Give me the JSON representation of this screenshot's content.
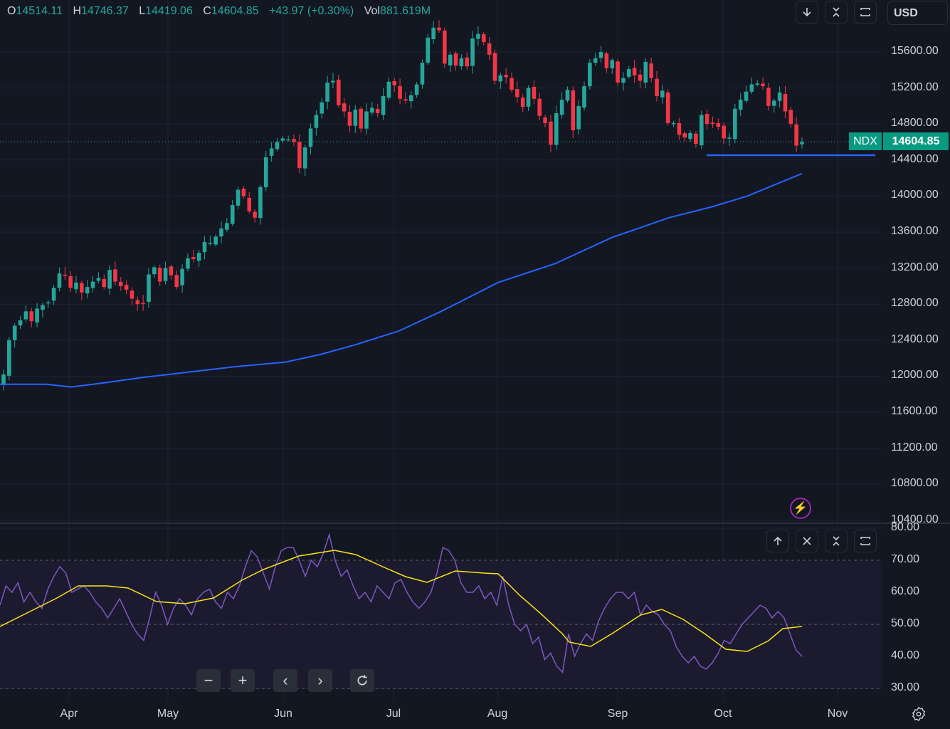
{
  "header": {
    "o_label": "O",
    "o_value": "14514.11",
    "h_label": "H",
    "h_value": "14746.37",
    "l_label": "L",
    "l_value": "14419.06",
    "c_label": "C",
    "c_value": "14604.85",
    "change": "+43.97 (+0.30%)",
    "vol_label": "Vol",
    "vol_value": "881.619M"
  },
  "toolbar": {
    "currency": "USD"
  },
  "price_tag": {
    "symbol": "NDX",
    "value": "14604.85"
  },
  "colors": {
    "up": "#26a69a",
    "down": "#f23645",
    "ma": "#2962ff",
    "rsi": "#7e57c2",
    "rsi_ma": "#f7e418",
    "support": "#2962ff"
  },
  "chart_data": [
    {
      "type": "candlestick",
      "symbol": "NDX",
      "y_ticks": [
        "15600.00",
        "15200.00",
        "14800.00",
        "14400.00",
        "14000.00",
        "13600.00",
        "13200.00",
        "12800.00",
        "12400.00",
        "12000.00",
        "11600.00",
        "11200.00",
        "10800.00",
        "10400.00"
      ],
      "ylim": [
        10400,
        16000
      ],
      "x_labels": [
        "Apr",
        "May",
        "Jun",
        "Jul",
        "Aug",
        "Sep",
        "Oct",
        "Nov"
      ],
      "grid": true,
      "close": [
        12020,
        12400,
        12560,
        12620,
        12720,
        12610,
        12750,
        12790,
        12820,
        12980,
        13140,
        13120,
        12980,
        13040,
        12930,
        12990,
        13050,
        13090,
        12990,
        13180,
        13050,
        13000,
        12960,
        12860,
        12800,
        12810,
        13130,
        13210,
        13050,
        13200,
        13120,
        12990,
        13190,
        13310,
        13300,
        13370,
        13490,
        13480,
        13550,
        13640,
        13700,
        13900,
        14070,
        14000,
        13830,
        13760,
        14100,
        14430,
        14530,
        14600,
        14640,
        14630,
        14600,
        14310,
        14540,
        14750,
        14900,
        15040,
        15260,
        15280,
        15010,
        14940,
        14780,
        14960,
        14750,
        14940,
        14980,
        14920,
        15110,
        15270,
        15230,
        15080,
        15060,
        15120,
        15240,
        15480,
        15760,
        15870,
        15840,
        15470,
        15570,
        15450,
        15530,
        15440,
        15750,
        15800,
        15710,
        15570,
        15280,
        15340,
        15320,
        15180,
        15100,
        14990,
        15200,
        15080,
        14890,
        14810,
        14570,
        14920,
        15070,
        15180,
        14730,
        15000,
        15220,
        15480,
        15530,
        15600,
        15420,
        15510,
        15260,
        15310,
        15410,
        15340,
        15280,
        15490,
        15310,
        15110,
        15170,
        14810,
        14810,
        14680,
        14650,
        14700,
        14580,
        14900,
        14800,
        14800,
        14770,
        14640,
        14650,
        14970,
        15070,
        15160,
        15240,
        15250,
        15220,
        15000,
        15060,
        15150,
        14940,
        14800,
        14560,
        14600
      ],
      "ma_line": [
        [
          0,
          11910
        ],
        [
          65,
          11910
        ],
        [
          100,
          11880
        ],
        [
          150,
          11930
        ],
        [
          200,
          11985
        ],
        [
          260,
          12040
        ],
        [
          330,
          12105
        ],
        [
          400,
          12155
        ],
        [
          450,
          12240
        ],
        [
          500,
          12350
        ],
        [
          560,
          12500
        ],
        [
          620,
          12720
        ],
        [
          700,
          13040
        ],
        [
          780,
          13250
        ],
        [
          860,
          13540
        ],
        [
          940,
          13760
        ],
        [
          1000,
          13880
        ],
        [
          1050,
          14000
        ],
        [
          1127,
          14250
        ]
      ],
      "support_line": [
        14440,
        14440
      ],
      "last_price": 14604.85
    },
    {
      "type": "line",
      "indicator": "RSI",
      "y_ticks": [
        "80.00",
        "70.00",
        "60.00",
        "50.00",
        "40.00",
        "30.00"
      ],
      "ylim": [
        30,
        80
      ],
      "bands": [
        70,
        50,
        30
      ],
      "rsi": [
        56,
        62,
        60,
        63,
        57,
        60,
        57,
        55,
        61,
        65,
        68,
        66,
        60,
        61,
        62,
        60,
        57,
        55,
        52,
        55,
        58,
        54,
        50,
        47,
        45,
        52,
        60,
        56,
        50,
        55,
        58,
        56,
        53,
        58,
        60,
        61,
        57,
        55,
        60,
        58,
        62,
        68,
        73,
        71,
        66,
        61,
        68,
        73,
        74,
        74,
        70,
        65,
        70,
        68,
        72,
        78,
        70,
        65,
        67,
        62,
        58,
        60,
        57,
        62,
        60,
        58,
        63,
        64,
        60,
        57,
        55,
        57,
        60,
        66,
        74,
        73,
        70,
        63,
        60,
        60,
        62,
        58,
        60,
        56,
        65,
        56,
        50,
        48,
        50,
        44,
        46,
        39,
        41,
        37,
        35,
        47,
        40,
        44,
        47,
        45,
        51,
        55,
        58,
        60,
        60,
        58,
        60,
        53,
        56,
        54,
        53,
        50,
        48,
        43,
        40,
        38,
        40,
        37,
        36,
        38,
        41,
        45,
        44,
        47,
        50,
        52,
        54,
        56,
        55,
        52,
        54,
        52,
        47,
        42,
        40
      ]
    }
  ],
  "rsi_ma_points": [
    [
      0,
      880
    ],
    [
      40,
      860
    ],
    [
      80,
      840
    ],
    [
      110,
      823
    ],
    [
      150,
      823
    ],
    [
      180,
      826
    ],
    [
      220,
      845
    ],
    [
      260,
      848
    ],
    [
      300,
      840
    ],
    [
      340,
      815
    ],
    [
      370,
      800
    ],
    [
      420,
      781
    ],
    [
      470,
      773
    ],
    [
      500,
      779
    ],
    [
      540,
      797
    ],
    [
      570,
      810
    ],
    [
      600,
      818
    ],
    [
      640,
      802
    ],
    [
      680,
      805
    ],
    [
      700,
      806
    ],
    [
      730,
      836
    ],
    [
      760,
      862
    ],
    [
      790,
      890
    ],
    [
      800,
      902
    ],
    [
      830,
      908
    ],
    [
      860,
      890
    ],
    [
      900,
      864
    ],
    [
      930,
      856
    ],
    [
      960,
      870
    ],
    [
      990,
      890
    ],
    [
      1020,
      912
    ],
    [
      1050,
      915
    ],
    [
      1080,
      900
    ],
    [
      1100,
      883
    ],
    [
      1127,
      880
    ]
  ]
}
